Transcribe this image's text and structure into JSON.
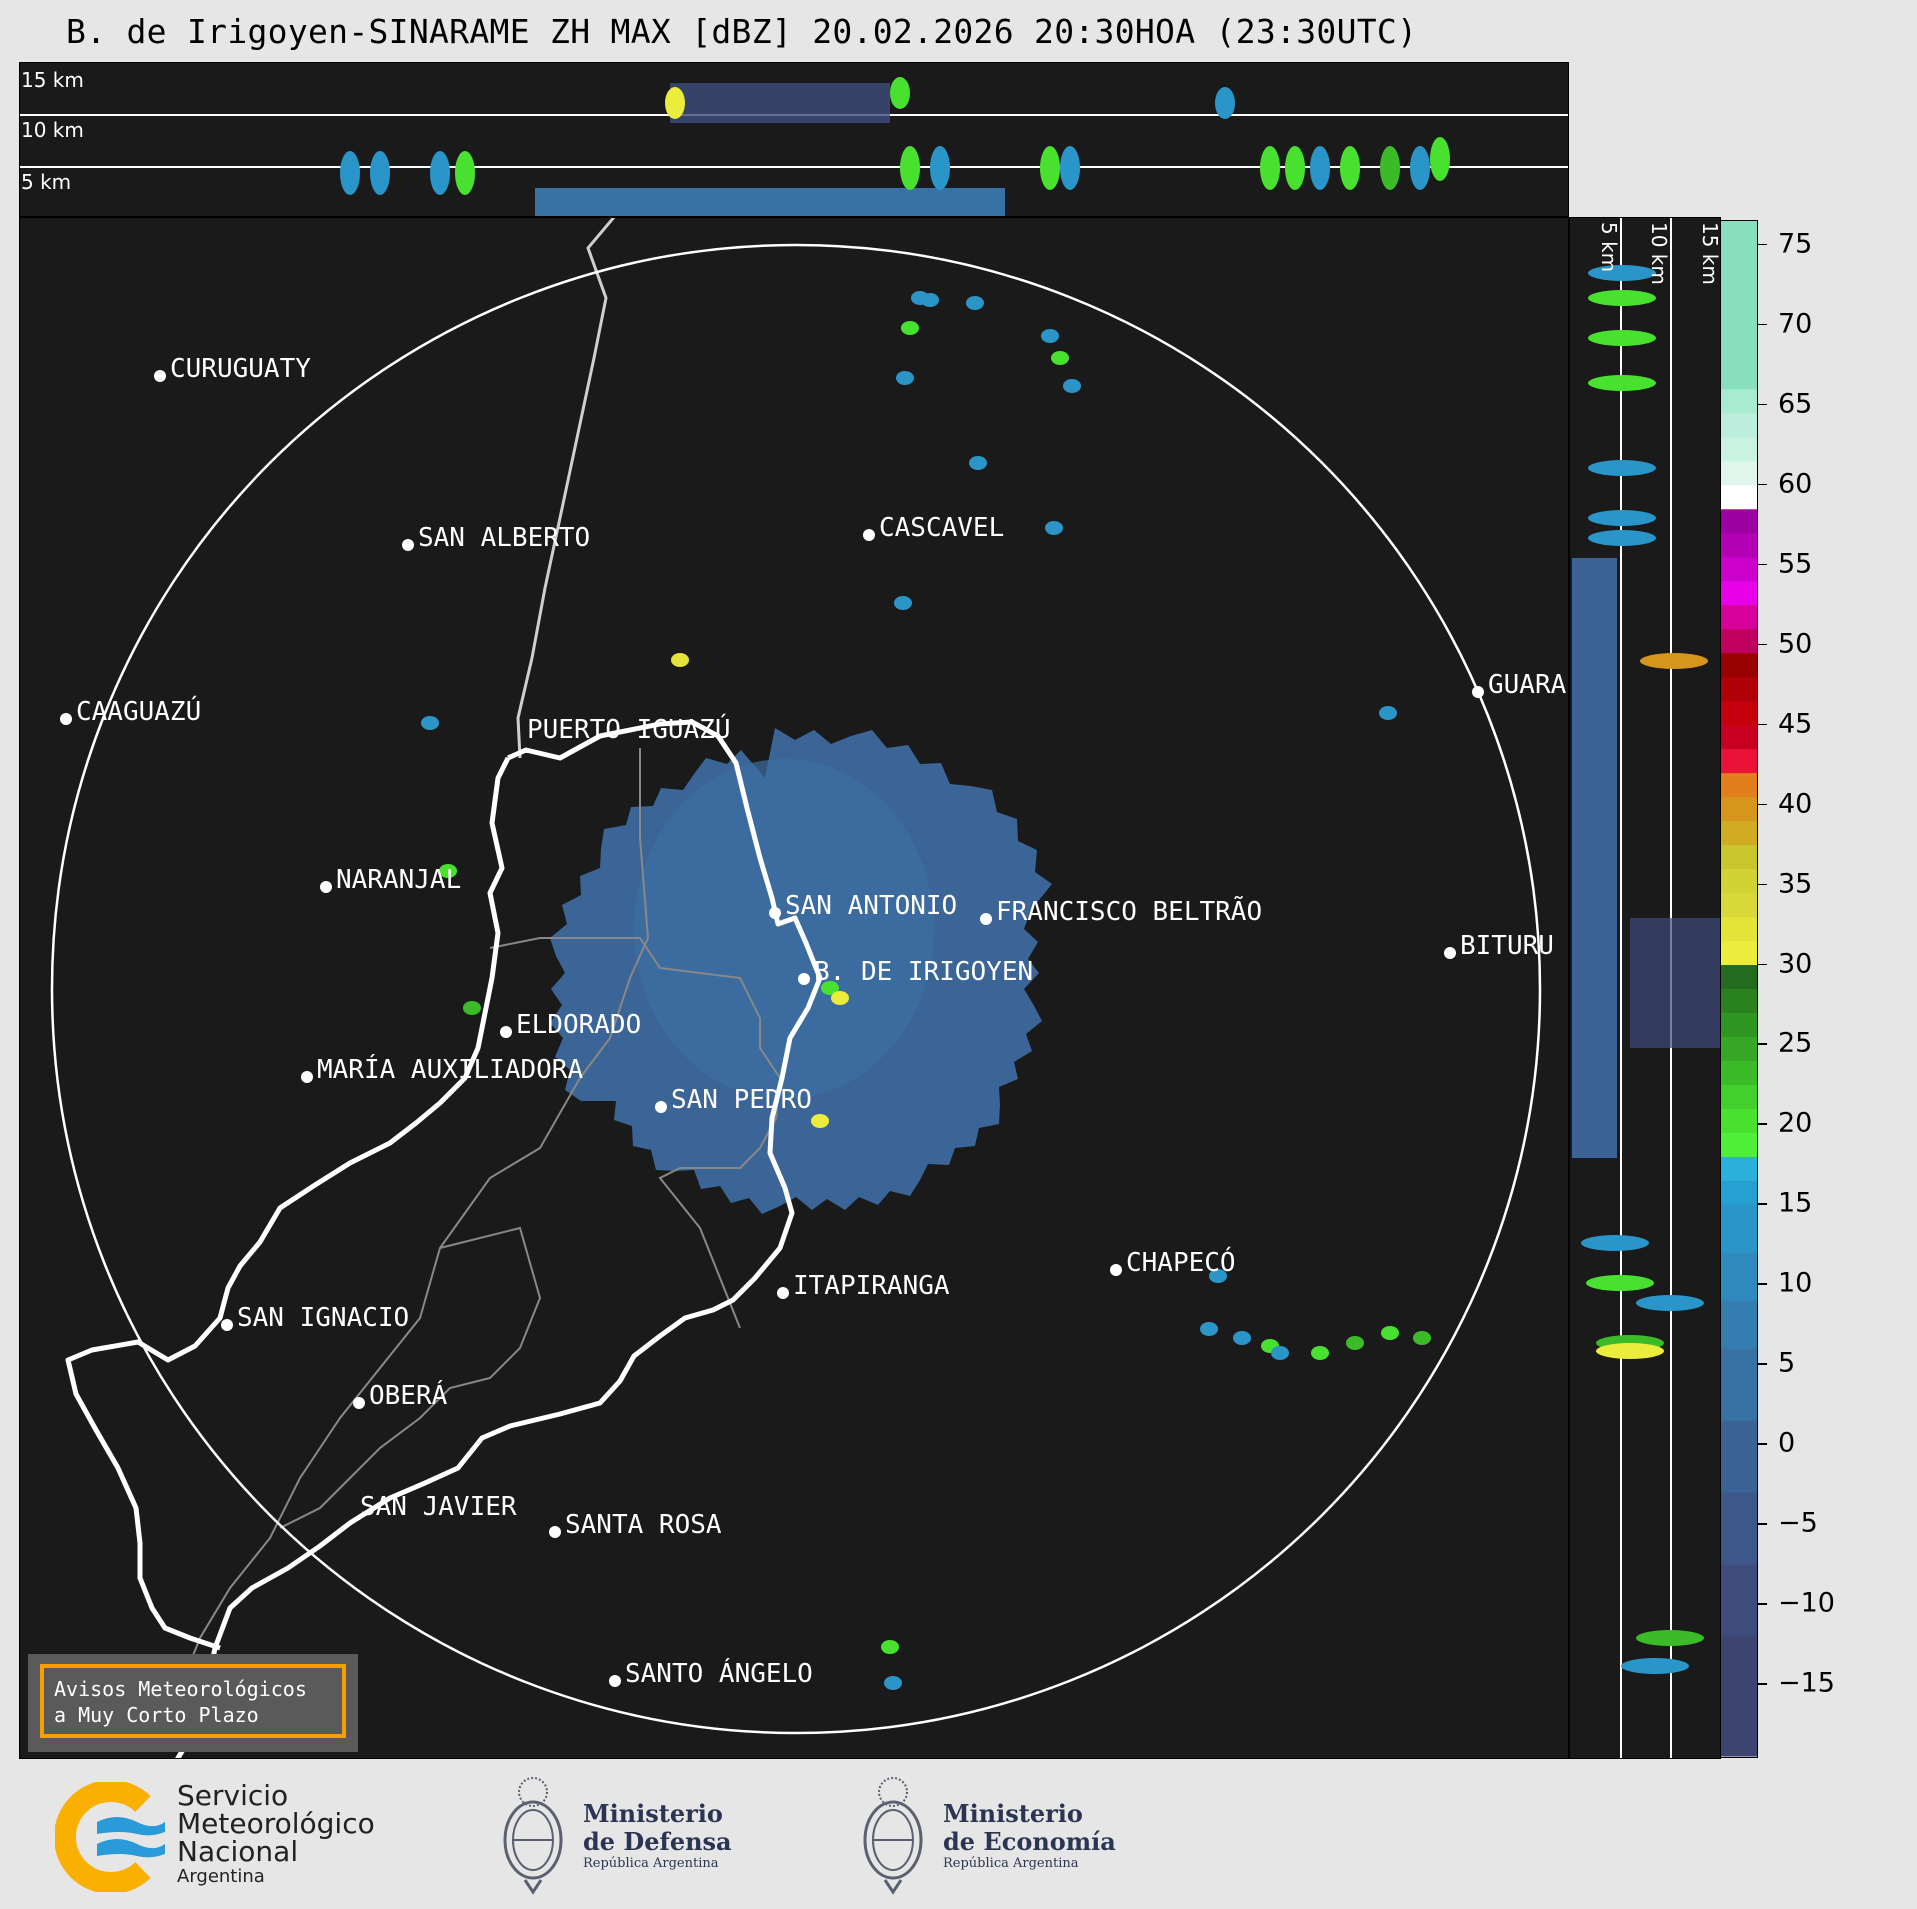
{
  "title": "B. de Irigoyen-SINARAME ZH MAX [dBZ] 20.02.2026 20:30HOA (23:30UTC)",
  "top_panel": {
    "height_labels": [
      "15 km",
      "10 km",
      "5 km"
    ]
  },
  "side_panel": {
    "height_labels": [
      "5 km",
      "10 km",
      "15 km"
    ]
  },
  "colorbar": {
    "unit": "dBZ",
    "range": [
      -19.5,
      76.5
    ],
    "ticks": [
      "75",
      "70",
      "65",
      "60",
      "55",
      "50",
      "45",
      "40",
      "35",
      "30",
      "25",
      "20",
      "15",
      "10",
      "5",
      "0",
      "−5",
      "−10",
      "−15"
    ],
    "tick_values": [
      75,
      70,
      65,
      60,
      55,
      50,
      45,
      40,
      35,
      30,
      25,
      20,
      15,
      10,
      5,
      0,
      -5,
      -10,
      -15
    ],
    "bands": [
      [
        -19.5,
        -12,
        "#3d4470"
      ],
      [
        -12,
        -7.5,
        "#3e4c7c"
      ],
      [
        -7.5,
        -3,
        "#3d5888"
      ],
      [
        -3,
        1.5,
        "#3b6396"
      ],
      [
        1.5,
        6,
        "#3872a4"
      ],
      [
        6,
        9,
        "#347db0"
      ],
      [
        9,
        12,
        "#2f89bc"
      ],
      [
        12,
        15,
        "#2a95c8"
      ],
      [
        15,
        16.5,
        "#25a0d0"
      ],
      [
        16.5,
        18,
        "#2bb0dc"
      ],
      [
        18,
        19.5,
        "#50f03a"
      ],
      [
        19.5,
        21,
        "#49e12f"
      ],
      [
        21,
        22.5,
        "#43cf2c"
      ],
      [
        22.5,
        24,
        "#3cbb29"
      ],
      [
        24,
        25.5,
        "#36a826"
      ],
      [
        25.5,
        27,
        "#309622"
      ],
      [
        27,
        28.5,
        "#2a821f"
      ],
      [
        28.5,
        30,
        "#236b1e"
      ],
      [
        30,
        31.5,
        "#ecec3c"
      ],
      [
        31.5,
        33,
        "#e3e33a"
      ],
      [
        33,
        34.5,
        "#d8d838"
      ],
      [
        34.5,
        36,
        "#d1d233"
      ],
      [
        36,
        37.5,
        "#c9c62d"
      ],
      [
        37.5,
        39,
        "#d1ab22"
      ],
      [
        39,
        40.5,
        "#d6951c"
      ],
      [
        40.5,
        42,
        "#e07f1c"
      ],
      [
        42,
        43.5,
        "#ea1236"
      ],
      [
        43.5,
        45,
        "#c80020"
      ],
      [
        45,
        46.5,
        "#c4000c"
      ],
      [
        46.5,
        48,
        "#b00008"
      ],
      [
        48,
        49.5,
        "#990000"
      ],
      [
        49.5,
        51,
        "#c0005e"
      ],
      [
        51,
        52.5,
        "#d8009a"
      ],
      [
        52.5,
        54,
        "#e800e8"
      ],
      [
        54,
        55.5,
        "#cc00cc"
      ],
      [
        55.5,
        57,
        "#b400b4"
      ],
      [
        57,
        58.5,
        "#9b00a0"
      ],
      [
        58.5,
        60,
        "#ffffff"
      ],
      [
        60,
        61.5,
        "#e0f5ec"
      ],
      [
        61.5,
        63,
        "#c8f2e2"
      ],
      [
        63,
        64.5,
        "#bdeedd"
      ],
      [
        64.5,
        66,
        "#a8ebd0"
      ],
      [
        66,
        76.5,
        "#88dfbf"
      ]
    ]
  },
  "map": {
    "radar_site": "B. DE IRIGOYEN",
    "range_ring_color": "#ffffff",
    "cities": [
      {
        "name": "CURUGUATY"
      },
      {
        "name": "SAN ALBERTO"
      },
      {
        "name": "CASCAVEL"
      },
      {
        "name": "CAAGUAZÚ"
      },
      {
        "name": "GUARA"
      },
      {
        "name": "PUERTO IGUAZÚ"
      },
      {
        "name": "NARANJAL"
      },
      {
        "name": "SAN ANTONIO"
      },
      {
        "name": "FRANCISCO BELTRÃO"
      },
      {
        "name": "BITURU"
      },
      {
        "name": "B. DE IRIGOYEN"
      },
      {
        "name": "ELDORADO"
      },
      {
        "name": "MARÍA AUXILIADORA"
      },
      {
        "name": "SAN PEDRO"
      },
      {
        "name": "CHAPECÓ"
      },
      {
        "name": "ITAPIRANGA"
      },
      {
        "name": "SAN IGNACIO"
      },
      {
        "name": "OBERÁ"
      },
      {
        "name": "SAN JAVIER"
      },
      {
        "name": "SANTA ROSA"
      },
      {
        "name": "SANTO ÁNGELO"
      }
    ],
    "warning_box": {
      "line1": "Avisos Meteorológicos",
      "line2": "a Muy Corto Plazo",
      "border_color": "#f5a000"
    }
  },
  "logos": {
    "smn": {
      "line1": "Servicio",
      "line2": "Meteorológico",
      "line3": "Nacional",
      "line4": "Argentina"
    },
    "defensa": {
      "line1": "Ministerio",
      "line2": "de Defensa",
      "line3": "República Argentina"
    },
    "economia": {
      "line1": "Ministerio",
      "line2": "de Economía",
      "line3": "República Argentina"
    }
  }
}
